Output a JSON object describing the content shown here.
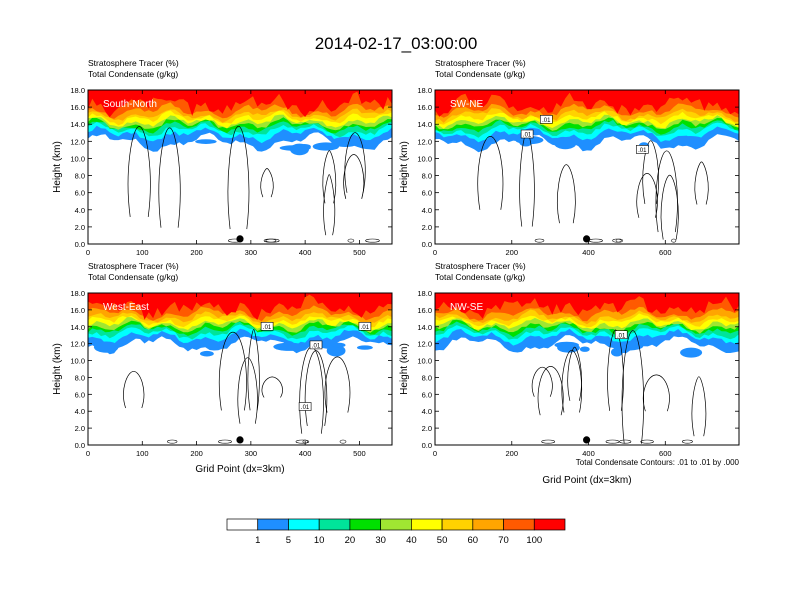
{
  "figure_title": "2014-02-17_03:00:00",
  "contour_note": "Total Condensate Contours: .01 to .01 by .000",
  "colorbar": {
    "colors": [
      "#ffffff",
      "#1f8fff",
      "#00ffff",
      "#00e49a",
      "#00e000",
      "#a0e632",
      "#ffff00",
      "#ffd200",
      "#ffa500",
      "#ff5a00",
      "#ff0000"
    ],
    "labels": [
      "1",
      "5",
      "10",
      "20",
      "30",
      "40",
      "50",
      "60",
      "70",
      "100"
    ]
  },
  "chart_data": [
    {
      "type": "heatmap",
      "label": "South-North",
      "title_lines": [
        "Stratosphere Tracer   (%)",
        "Total Condensate   (g/kg)"
      ],
      "ylabel": "Height (km)",
      "xlabel": "",
      "ylim": [
        0,
        18
      ],
      "yticks": [
        "0.0",
        "2.0",
        "4.0",
        "6.0",
        "8.0",
        "10.0",
        "12.0",
        "14.0",
        "16.0",
        "18.0"
      ],
      "xlim": [
        0,
        560
      ],
      "xticks": [
        0,
        100,
        200,
        300,
        400,
        500
      ],
      "marker_x": 280,
      "contour_labels": []
    },
    {
      "type": "heatmap",
      "label": "SW-NE",
      "title_lines": [
        "Stratosphere Tracer   (%)",
        "Total Condensate   (g/kg)"
      ],
      "ylabel": "Height (km)",
      "xlabel": "",
      "ylim": [
        0,
        18
      ],
      "yticks": [
        "0.0",
        "2.0",
        "4.0",
        "6.0",
        "8.0",
        "10.0",
        "12.0",
        "14.0",
        "16.0",
        "18.0"
      ],
      "xlim": [
        0,
        792
      ],
      "xticks": [
        0,
        200,
        400,
        600
      ],
      "marker_x": 395,
      "contour_labels": [
        {
          "text": ".01",
          "x": 240,
          "y": 12.8
        },
        {
          "text": ".01",
          "x": 290,
          "y": 14.5
        },
        {
          "text": ".01",
          "x": 540,
          "y": 11.0
        }
      ]
    },
    {
      "type": "heatmap",
      "label": "West-East",
      "title_lines": [
        "Stratosphere Tracer   (%)",
        "Total Condensate   (g/kg)"
      ],
      "ylabel": "Height (km)",
      "xlabel": "Grid Point (dx=3km)",
      "ylim": [
        0,
        18
      ],
      "yticks": [
        "0.0",
        "2.0",
        "4.0",
        "6.0",
        "8.0",
        "10.0",
        "12.0",
        "14.0",
        "16.0",
        "18.0"
      ],
      "xlim": [
        0,
        560
      ],
      "xticks": [
        0,
        100,
        200,
        300,
        400,
        500
      ],
      "marker_x": 280,
      "contour_labels": [
        {
          "text": ".01",
          "x": 330,
          "y": 14.0
        },
        {
          "text": ".01",
          "x": 420,
          "y": 11.8
        },
        {
          "text": ".01",
          "x": 510,
          "y": 14.0
        },
        {
          "text": ".01",
          "x": 400,
          "y": 4.5
        }
      ]
    },
    {
      "type": "heatmap",
      "label": "NW-SE",
      "title_lines": [
        "Stratosphere Tracer   (%)",
        "Total Condensate   (g/kg)"
      ],
      "ylabel": "Height (km)",
      "xlabel": "Grid Point (dx=3km)",
      "ylim": [
        0,
        18
      ],
      "yticks": [
        "0.0",
        "2.0",
        "4.0",
        "6.0",
        "8.0",
        "10.0",
        "12.0",
        "14.0",
        "16.0",
        "18.0"
      ],
      "xlim": [
        0,
        792
      ],
      "xticks": [
        0,
        200,
        400,
        600
      ],
      "marker_x": 395,
      "contour_labels": [
        {
          "text": ".01",
          "x": 485,
          "y": 13.0
        }
      ]
    }
  ]
}
